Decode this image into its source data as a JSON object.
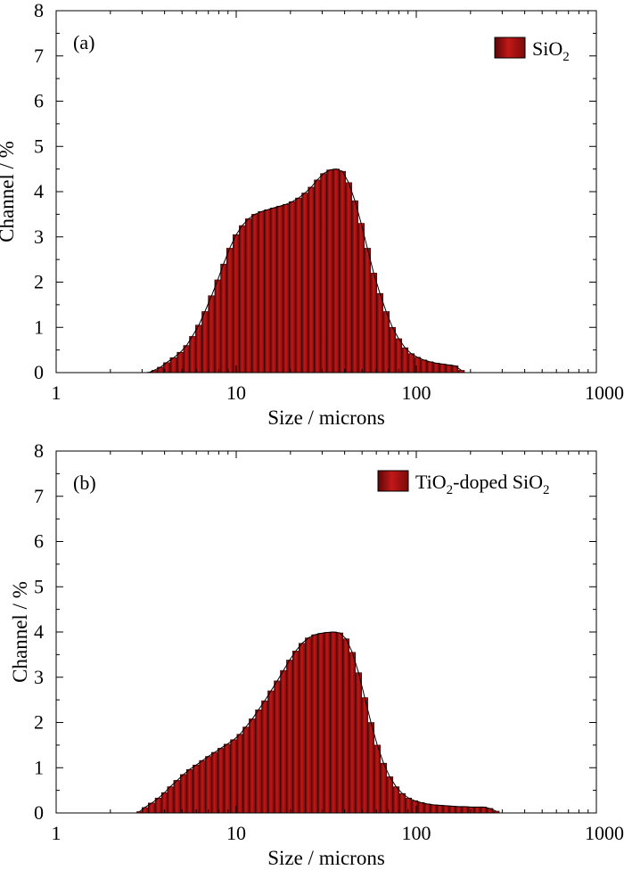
{
  "chart_data": [
    {
      "type": "bar",
      "panel_label": "(a)",
      "legend": {
        "main": "SiO",
        "sub": "2",
        "suffix": ""
      },
      "xlabel": "Size / microns",
      "ylabel": "Channel / %",
      "xscale": "log",
      "xlim": [
        1,
        1000
      ],
      "ylim": [
        0,
        8
      ],
      "xticks": [
        "1",
        "10",
        "100",
        "1000"
      ],
      "yticks": [
        "0",
        "1",
        "2",
        "3",
        "4",
        "5",
        "6",
        "7",
        "8"
      ],
      "legend_position": "top-right",
      "color": "#b01e1e",
      "x": [
        3.3,
        3.5,
        3.8,
        4.1,
        4.5,
        4.9,
        5.3,
        5.7,
        6.2,
        6.7,
        7.3,
        7.9,
        8.5,
        9.2,
        10.0,
        10.8,
        11.7,
        12.7,
        13.8,
        14.9,
        16.1,
        17.5,
        18.9,
        20.5,
        22.2,
        24.1,
        26.1,
        28.2,
        30.6,
        33.1,
        35.9,
        38.9,
        42.1,
        45.6,
        49.4,
        53.5,
        58.0,
        62.8,
        68.0,
        73.7,
        79.8,
        86.5,
        93.7,
        101.5,
        109.9,
        119.1,
        129.0,
        139.8,
        151.4,
        164.0,
        177.7
      ],
      "values": [
        0.01,
        0.05,
        0.12,
        0.22,
        0.33,
        0.45,
        0.6,
        0.8,
        1.05,
        1.35,
        1.7,
        2.05,
        2.4,
        2.75,
        3.05,
        3.25,
        3.4,
        3.5,
        3.56,
        3.6,
        3.64,
        3.68,
        3.72,
        3.78,
        3.86,
        3.97,
        4.1,
        4.26,
        4.4,
        4.48,
        4.5,
        4.45,
        4.2,
        3.8,
        3.3,
        2.75,
        2.2,
        1.75,
        1.35,
        1.0,
        0.75,
        0.55,
        0.42,
        0.34,
        0.28,
        0.24,
        0.21,
        0.19,
        0.17,
        0.15,
        0.05
      ]
    },
    {
      "type": "bar",
      "panel_label": "(b)",
      "legend": {
        "main": "TiO",
        "sub": "2",
        "suffix": "-doped SiO",
        "sub2": "2"
      },
      "xlabel": "Size / microns",
      "ylabel": "Channel / %",
      "xscale": "log",
      "xlim": [
        1,
        1000
      ],
      "ylim": [
        0,
        8
      ],
      "xticks": [
        "1",
        "10",
        "100",
        "1000"
      ],
      "yticks": [
        "0",
        "1",
        "2",
        "3",
        "4",
        "5",
        "6",
        "7",
        "8"
      ],
      "legend_position": "top-right",
      "color": "#b01e1e",
      "x": [
        2.9,
        3.1,
        3.4,
        3.7,
        4.0,
        4.3,
        4.7,
        5.1,
        5.5,
        6.0,
        6.5,
        7.0,
        7.6,
        8.2,
        8.9,
        9.7,
        10.5,
        11.3,
        12.3,
        13.3,
        14.4,
        15.6,
        16.9,
        18.3,
        19.8,
        21.4,
        23.2,
        25.2,
        27.3,
        29.5,
        32.0,
        34.7,
        37.6,
        40.7,
        44.1,
        47.8,
        51.7,
        56.0,
        60.7,
        65.8,
        71.2,
        77.2,
        83.6,
        90.5,
        98.1,
        106.3,
        115.1,
        124.7,
        135.1,
        146.3,
        158.5,
        171.7,
        186.0,
        201.5,
        218.3,
        236.5,
        256.2,
        277.5
      ],
      "values": [
        0.03,
        0.12,
        0.22,
        0.33,
        0.45,
        0.58,
        0.72,
        0.85,
        0.96,
        1.06,
        1.16,
        1.25,
        1.34,
        1.43,
        1.52,
        1.62,
        1.74,
        1.9,
        2.08,
        2.28,
        2.48,
        2.7,
        2.92,
        3.15,
        3.38,
        3.58,
        3.75,
        3.87,
        3.94,
        3.97,
        3.99,
        4.0,
        3.98,
        3.85,
        3.55,
        3.1,
        2.55,
        2.0,
        1.5,
        1.1,
        0.8,
        0.58,
        0.43,
        0.33,
        0.27,
        0.23,
        0.2,
        0.18,
        0.17,
        0.16,
        0.15,
        0.14,
        0.14,
        0.13,
        0.13,
        0.13,
        0.1,
        0.04
      ]
    }
  ]
}
